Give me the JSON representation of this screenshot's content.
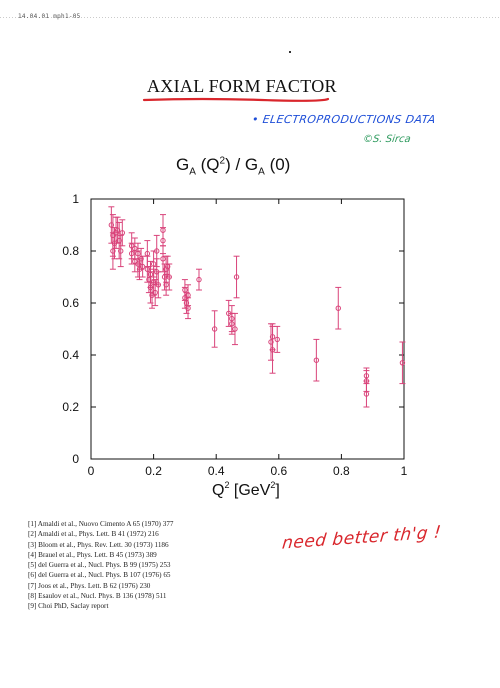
{
  "slide_id": "14.04.01 mph1-05",
  "page_title": "AXIAL FORM FACTOR",
  "handwritten_notes": {
    "electroproduction": "• ELECTROPRODUCTIONS DATA",
    "author": "©S. Sirca",
    "need_better": "need better th'g !"
  },
  "colors": {
    "data": "#d9437a",
    "underline": "#d9262c",
    "note_blue": "#1f4fd8",
    "note_green": "#2e9a5e",
    "note_red": "#d9262c"
  },
  "chart_title_parts": {
    "G": "G",
    "A": "A",
    "open": "(Q",
    "sq": "2",
    "close": ") / G",
    "A2": "A",
    "zero": "(0)"
  },
  "xlabel_parts": {
    "Q": "Q",
    "sq": "2",
    "unit_open": " [GeV",
    "unit_sq": "2",
    "unit_close": "]"
  },
  "references": [
    "[1] Amaldi et al., Nuovo Cimento A 65 (1970) 377",
    "[2] Amaldi et al., Phys. Lett. B 41 (1972) 216",
    "[3] Bloom et al., Phys. Rev. Lett. 30 (1973) 1186",
    "[4] Brauel et al., Phys. Lett. B 45 (1973) 389",
    "[5] del Guerra et al., Nucl. Phys. B 99 (1975) 253",
    "[6] del Guerra et al., Nucl. Phys. B 107 (1976) 65",
    "[7] Joos et al., Phys. Lett. B 62 (1976) 230",
    "[8] Esaulov et al., Nucl. Phys. B 136 (1978) 511",
    "[9] Choi PhD, Saclay report"
  ],
  "chart_data": {
    "type": "scatter",
    "title": "G_A (Q^2) / G_A (0)",
    "xlabel": "Q^2 [GeV^2]",
    "ylabel": "",
    "xlim": [
      0,
      1
    ],
    "ylim": [
      0,
      1
    ],
    "x_ticks": [
      0,
      0.2,
      0.4,
      0.6,
      0.8,
      1
    ],
    "x_tick_labels": [
      "0",
      "0.2",
      "0.4",
      "0.6",
      "0.8",
      "1"
    ],
    "y_ticks": [
      0,
      0.2,
      0.4,
      0.6,
      0.8,
      1
    ],
    "y_tick_labels": [
      "0",
      "0.2",
      "0.4",
      "0.6",
      "0.8",
      "1"
    ],
    "grid": false,
    "series": [
      {
        "marker": "circle-with-error-bars",
        "points": [
          {
            "x": 0.065,
            "y": 0.9,
            "err": 0.07
          },
          {
            "x": 0.07,
            "y": 0.86,
            "err": 0.08
          },
          {
            "x": 0.07,
            "y": 0.8,
            "err": 0.07
          },
          {
            "x": 0.075,
            "y": 0.83,
            "err": 0.06
          },
          {
            "x": 0.08,
            "y": 0.87,
            "err": 0.06
          },
          {
            "x": 0.085,
            "y": 0.88,
            "err": 0.05
          },
          {
            "x": 0.09,
            "y": 0.84,
            "err": 0.07
          },
          {
            "x": 0.1,
            "y": 0.87,
            "err": 0.05
          },
          {
            "x": 0.095,
            "y": 0.8,
            "err": 0.06
          },
          {
            "x": 0.13,
            "y": 0.82,
            "err": 0.05
          },
          {
            "x": 0.13,
            "y": 0.79,
            "err": 0.04
          },
          {
            "x": 0.14,
            "y": 0.81,
            "err": 0.04
          },
          {
            "x": 0.14,
            "y": 0.76,
            "err": 0.04
          },
          {
            "x": 0.15,
            "y": 0.79,
            "err": 0.04
          },
          {
            "x": 0.15,
            "y": 0.75,
            "err": 0.05
          },
          {
            "x": 0.155,
            "y": 0.73,
            "err": 0.04
          },
          {
            "x": 0.16,
            "y": 0.77,
            "err": 0.04
          },
          {
            "x": 0.165,
            "y": 0.74,
            "err": 0.04
          },
          {
            "x": 0.18,
            "y": 0.79,
            "err": 0.05
          },
          {
            "x": 0.18,
            "y": 0.73,
            "err": 0.05
          },
          {
            "x": 0.185,
            "y": 0.69,
            "err": 0.05
          },
          {
            "x": 0.19,
            "y": 0.66,
            "err": 0.06
          },
          {
            "x": 0.19,
            "y": 0.71,
            "err": 0.05
          },
          {
            "x": 0.195,
            "y": 0.63,
            "err": 0.05
          },
          {
            "x": 0.2,
            "y": 0.75,
            "err": 0.05
          },
          {
            "x": 0.2,
            "y": 0.68,
            "err": 0.05
          },
          {
            "x": 0.205,
            "y": 0.64,
            "err": 0.05
          },
          {
            "x": 0.21,
            "y": 0.72,
            "err": 0.05
          },
          {
            "x": 0.21,
            "y": 0.8,
            "err": 0.06
          },
          {
            "x": 0.215,
            "y": 0.67,
            "err": 0.05
          },
          {
            "x": 0.23,
            "y": 0.88,
            "err": 0.06
          },
          {
            "x": 0.23,
            "y": 0.84,
            "err": 0.05
          },
          {
            "x": 0.23,
            "y": 0.77,
            "err": 0.05
          },
          {
            "x": 0.235,
            "y": 0.7,
            "err": 0.05
          },
          {
            "x": 0.24,
            "y": 0.73,
            "err": 0.05
          },
          {
            "x": 0.24,
            "y": 0.67,
            "err": 0.04
          },
          {
            "x": 0.245,
            "y": 0.74,
            "err": 0.04
          },
          {
            "x": 0.25,
            "y": 0.7,
            "err": 0.05
          },
          {
            "x": 0.3,
            "y": 0.65,
            "err": 0.04
          },
          {
            "x": 0.3,
            "y": 0.62,
            "err": 0.04
          },
          {
            "x": 0.31,
            "y": 0.63,
            "err": 0.04
          },
          {
            "x": 0.305,
            "y": 0.6,
            "err": 0.04
          },
          {
            "x": 0.31,
            "y": 0.58,
            "err": 0.04
          },
          {
            "x": 0.345,
            "y": 0.69,
            "err": 0.04
          },
          {
            "x": 0.395,
            "y": 0.5,
            "err": 0.07
          },
          {
            "x": 0.44,
            "y": 0.56,
            "err": 0.05
          },
          {
            "x": 0.45,
            "y": 0.52,
            "err": 0.04
          },
          {
            "x": 0.45,
            "y": 0.54,
            "err": 0.05
          },
          {
            "x": 0.46,
            "y": 0.5,
            "err": 0.06
          },
          {
            "x": 0.465,
            "y": 0.7,
            "err": 0.08
          },
          {
            "x": 0.575,
            "y": 0.45,
            "err": 0.07
          },
          {
            "x": 0.58,
            "y": 0.42,
            "err": 0.09
          },
          {
            "x": 0.58,
            "y": 0.47,
            "err": 0.05
          },
          {
            "x": 0.595,
            "y": 0.46,
            "err": 0.05
          },
          {
            "x": 0.72,
            "y": 0.38,
            "err": 0.08
          },
          {
            "x": 0.79,
            "y": 0.58,
            "err": 0.08
          },
          {
            "x": 0.88,
            "y": 0.32,
            "err": 0.03
          },
          {
            "x": 0.88,
            "y": 0.3,
            "err": 0.04
          },
          {
            "x": 0.88,
            "y": 0.25,
            "err": 0.05
          },
          {
            "x": 0.995,
            "y": 0.37,
            "err": 0.08
          }
        ]
      }
    ]
  }
}
